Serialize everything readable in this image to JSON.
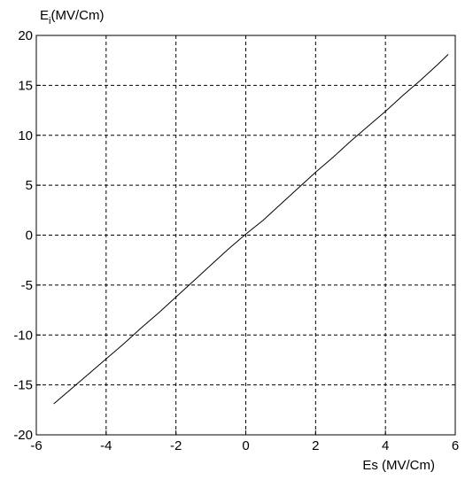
{
  "chart_data": {
    "type": "line",
    "title": "",
    "xlabel": "Es (MV/Cm)",
    "ylabel": {
      "main": "E",
      "sub": "i",
      "rest": "(MV/Cm)"
    },
    "xlim": [
      -6,
      6
    ],
    "ylim": [
      -20,
      20
    ],
    "x_ticks": [
      -6,
      -4,
      -2,
      0,
      2,
      4,
      6
    ],
    "y_ticks": [
      -20,
      -15,
      -10,
      -5,
      0,
      5,
      10,
      15,
      20
    ],
    "x_tick_labels": [
      "-6",
      "-4",
      "-2",
      "0",
      "2",
      "4",
      "6"
    ],
    "y_tick_labels": [
      "-20",
      "-15",
      "-10",
      "-5",
      "0",
      "5",
      "10",
      "15",
      "20"
    ],
    "grid": true,
    "series": [
      {
        "x": [
          -5.5,
          -5,
          -4.5,
          -4,
          -3.5,
          -3,
          -2.5,
          -2,
          -1.5,
          -1,
          -0.5,
          0,
          0.5,
          1,
          1.5,
          2,
          2.5,
          3,
          3.5,
          4,
          4.5,
          5,
          5.5,
          5.8
        ],
        "y": [
          -16.9,
          -15.4,
          -13.9,
          -12.4,
          -10.9,
          -9.3,
          -7.8,
          -6.2,
          -4.6,
          -3.0,
          -1.4,
          0.1,
          1.5,
          3.1,
          4.7,
          6.3,
          7.8,
          9.4,
          10.9,
          12.4,
          14.0,
          15.5,
          17.1,
          18.1
        ]
      }
    ]
  }
}
